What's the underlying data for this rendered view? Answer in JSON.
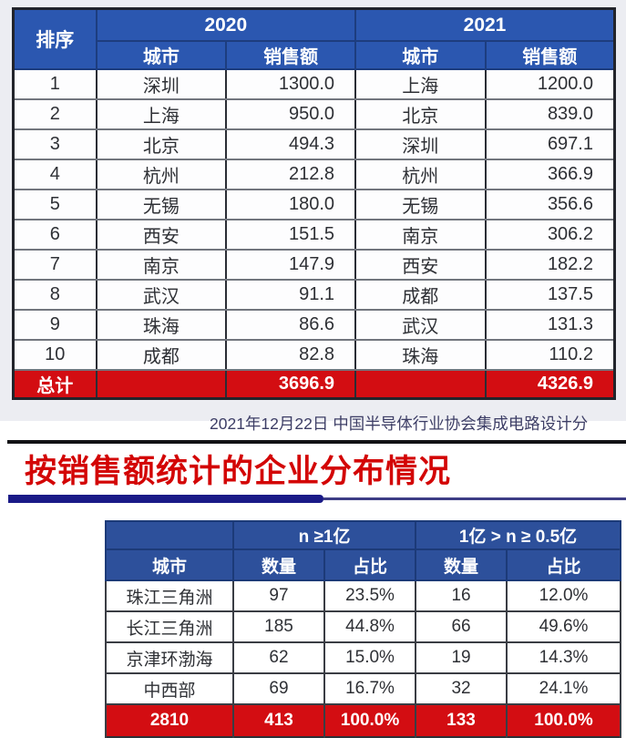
{
  "colors": {
    "header_blue": "#2b57b0",
    "header_blue_dark": "#2d509b",
    "total_red": "#d30d12",
    "title_red": "#d30505",
    "underline_navy": "#1a1a87",
    "caption_color": "#3d3e66"
  },
  "rank_table": {
    "rank_header": "排序",
    "groups": [
      {
        "year": "2020",
        "city_header": "城市",
        "sales_header": "销售额"
      },
      {
        "year": "2021",
        "city_header": "城市",
        "sales_header": "销售额"
      }
    ],
    "rows": [
      {
        "rank": "1",
        "city2020": "深圳",
        "sales2020": "1300.0",
        "city2021": "上海",
        "sales2021": "1200.0"
      },
      {
        "rank": "2",
        "city2020": "上海",
        "sales2020": "950.0",
        "city2021": "北京",
        "sales2021": "839.0"
      },
      {
        "rank": "3",
        "city2020": "北京",
        "sales2020": "494.3",
        "city2021": "深圳",
        "sales2021": "697.1"
      },
      {
        "rank": "4",
        "city2020": "杭州",
        "sales2020": "212.8",
        "city2021": "杭州",
        "sales2021": "366.9"
      },
      {
        "rank": "5",
        "city2020": "无锡",
        "sales2020": "180.0",
        "city2021": "无锡",
        "sales2021": "356.6"
      },
      {
        "rank": "6",
        "city2020": "西安",
        "sales2020": "151.5",
        "city2021": "南京",
        "sales2021": "306.2"
      },
      {
        "rank": "7",
        "city2020": "南京",
        "sales2020": "147.9",
        "city2021": "西安",
        "sales2021": "182.2"
      },
      {
        "rank": "8",
        "city2020": "武汉",
        "sales2020": "91.1",
        "city2021": "成都",
        "sales2021": "137.5"
      },
      {
        "rank": "9",
        "city2020": "珠海",
        "sales2020": "86.6",
        "city2021": "武汉",
        "sales2021": "131.3"
      },
      {
        "rank": "10",
        "city2020": "成都",
        "sales2020": "82.8",
        "city2021": "珠海",
        "sales2021": "110.2"
      }
    ],
    "total": {
      "label": "总计",
      "sales2020": "3696.9",
      "sales2021": "4326.9"
    }
  },
  "caption": "2021年12月22日 中国半导体行业协会集成电路设计分",
  "section2": {
    "title": "按销售额统计的企业分布情况",
    "dist_table": {
      "city_header": "城市",
      "group1_header": "n ≥1亿",
      "group2_header": "1亿 > n ≥ 0.5亿",
      "count_header_1": "数量",
      "share_header_1": "占比",
      "count_header_2": "数量",
      "share_header_2": "占比",
      "rows": [
        {
          "region": "珠江三角洲",
          "count1": "97",
          "share1": "23.5%",
          "count2": "16",
          "share2": "12.0%"
        },
        {
          "region": "长江三角洲",
          "count1": "185",
          "share1": "44.8%",
          "count2": "66",
          "share2": "49.6%"
        },
        {
          "region": "京津环渤海",
          "count1": "62",
          "share1": "15.0%",
          "count2": "19",
          "share2": "14.3%"
        },
        {
          "region": "中西部",
          "count1": "69",
          "share1": "16.7%",
          "count2": "32",
          "share2": "24.1%"
        }
      ],
      "total": {
        "label": "2810",
        "count1": "413",
        "share1": "100.0%",
        "count2": "133",
        "share2": "100.0%"
      }
    }
  }
}
